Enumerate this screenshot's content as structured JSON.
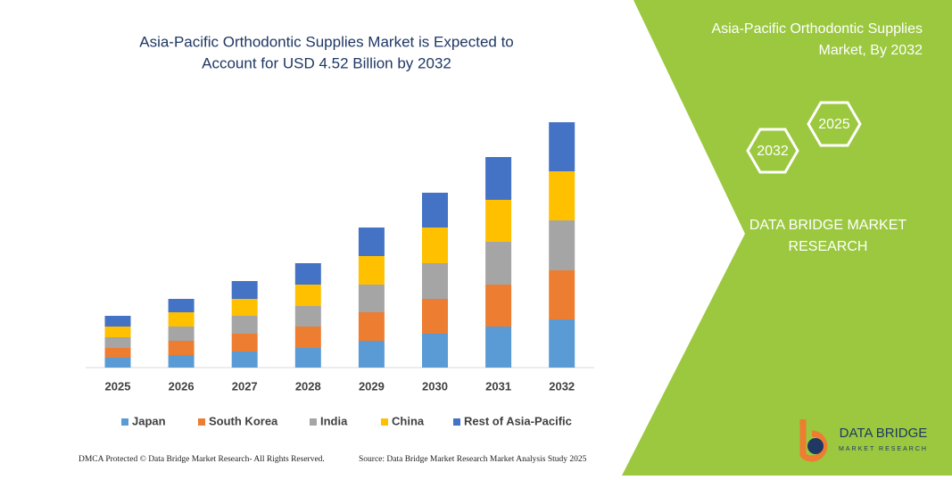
{
  "chart_data": {
    "type": "stacked-bar",
    "title": [
      "Asia-Pacific Orthodontic Supplies Market is Expected to",
      "Account for USD 4.52 Billion by 2032"
    ],
    "categories": [
      "2025",
      "2026",
      "2027",
      "2028",
      "2029",
      "2030",
      "2031",
      "2032"
    ],
    "series": [
      {
        "name": "Japan",
        "color": "#5b9bd5",
        "values": [
          11,
          14,
          18,
          22,
          30,
          38,
          46,
          54
        ]
      },
      {
        "name": "South Korea",
        "color": "#ed7d31",
        "values": [
          11,
          16,
          20,
          24,
          32,
          39,
          47,
          55
        ]
      },
      {
        "name": "India",
        "color": "#a5a5a5",
        "values": [
          12,
          16,
          20,
          23,
          31,
          40,
          48,
          56
        ]
      },
      {
        "name": "China",
        "color": "#ffc000",
        "values": [
          12,
          16,
          19,
          24,
          32,
          40,
          47,
          55
        ]
      },
      {
        "name": "Rest of Asia-Pacific",
        "color": "#4472c4",
        "values": [
          12,
          15,
          20,
          24,
          32,
          39,
          48,
          55
        ]
      }
    ]
  },
  "panel": {
    "title": [
      "Asia-Pacific Orthodontic Supplies",
      "Market, By 2032"
    ],
    "hexagons": [
      "2032",
      "2025"
    ],
    "brand": [
      "DATA BRIDGE MARKET",
      "RESEARCH"
    ],
    "logo": [
      "DATA BRIDGE",
      "MARKET RESEARCH"
    ]
  },
  "footer": {
    "left": "DMCA Protected © Data Bridge Market Research- All Rights Reserved.",
    "right": "Source: Data Bridge Market Research Market Analysis Study 2025"
  }
}
